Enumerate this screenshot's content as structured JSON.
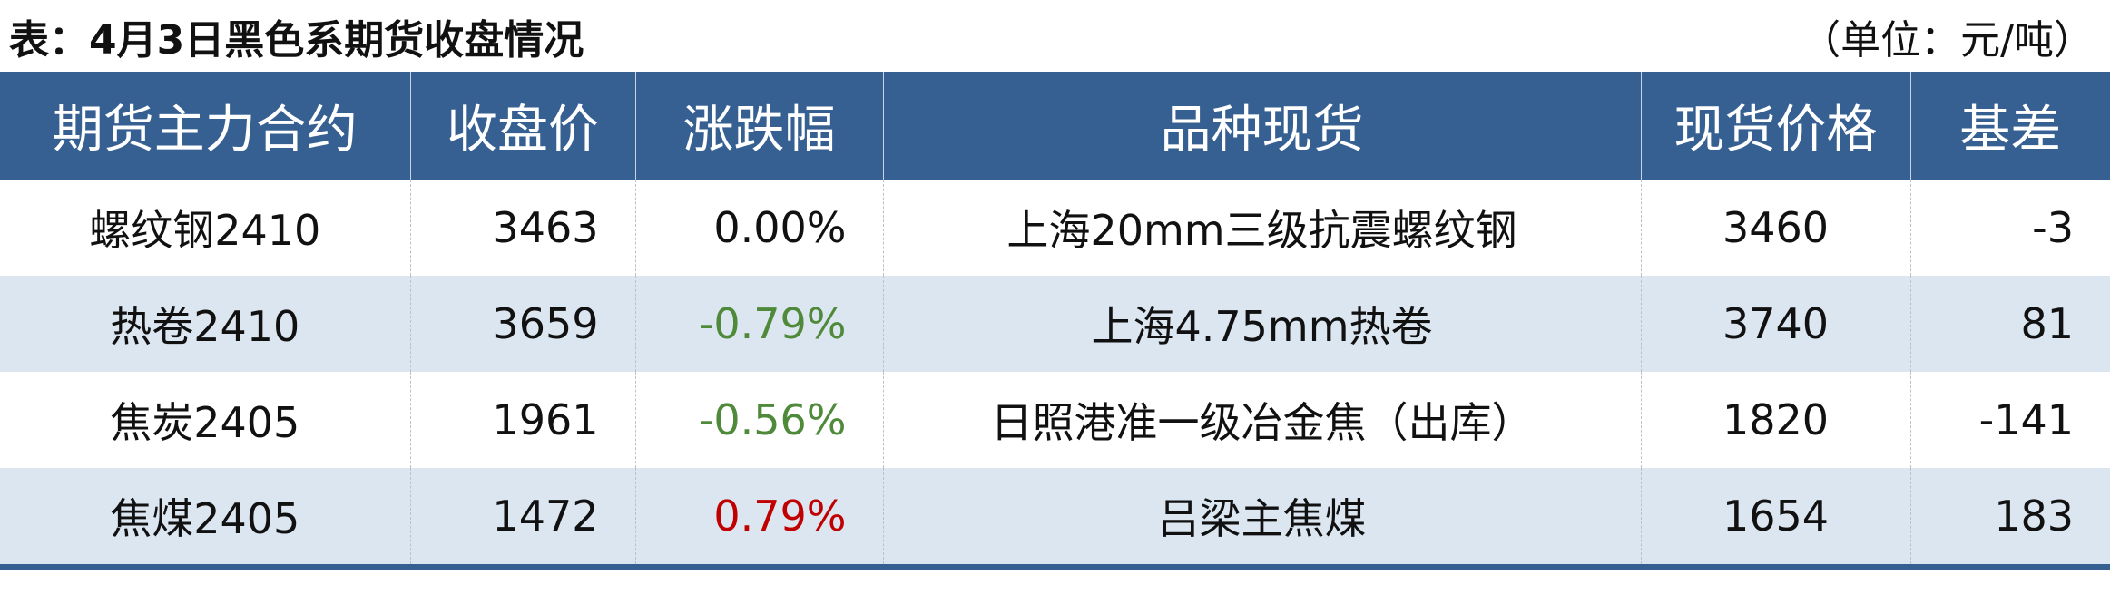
{
  "title": "表：4月3日黑色系期货收盘情况",
  "unit": "（单位：元/吨）",
  "colors": {
    "header_bg": "#366092",
    "stripe": "#dce6f1",
    "down": "#4f8a3a",
    "up": "#c00000"
  },
  "columns": [
    "期货主力合约",
    "收盘价",
    "涨跌幅",
    "品种现货",
    "现货价格",
    "基差"
  ],
  "rows": [
    {
      "contract": "螺纹钢2410",
      "close": "3463",
      "change": "0.00%",
      "dir": "flat",
      "spot": "上海20mm三级抗震螺纹钢",
      "spot_price": "3460",
      "basis": "-3"
    },
    {
      "contract": "热卷2410",
      "close": "3659",
      "change": "-0.79%",
      "dir": "down",
      "spot": "上海4.75mm热卷",
      "spot_price": "3740",
      "basis": "81"
    },
    {
      "contract": "焦炭2405",
      "close": "1961",
      "change": "-0.56%",
      "dir": "down",
      "spot": "日照港准一级冶金焦（出库）",
      "spot_price": "1820",
      "basis": "-141"
    },
    {
      "contract": "焦煤2405",
      "close": "1472",
      "change": "0.79%",
      "dir": "up",
      "spot": "吕梁主焦煤",
      "spot_price": "1654",
      "basis": "183"
    }
  ]
}
